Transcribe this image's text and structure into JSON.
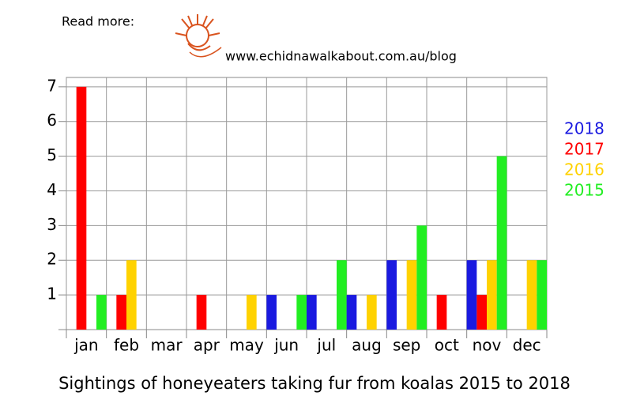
{
  "header": {
    "read_more": "Read more:",
    "url": "www.echidnawalkabout.com.au/blog"
  },
  "chart_data": {
    "type": "bar",
    "title": "Sightings of honeyeaters taking fur from koalas 2015 to 2018",
    "categories": [
      "jan",
      "feb",
      "mar",
      "apr",
      "may",
      "jun",
      "jul",
      "aug",
      "sep",
      "oct",
      "nov",
      "dec"
    ],
    "series": [
      {
        "name": "2018",
        "color": "#1a1ae0",
        "values": [
          0,
          0,
          0,
          0,
          0,
          1,
          1,
          1,
          2,
          0,
          2,
          0
        ]
      },
      {
        "name": "2017",
        "color": "#ff0000",
        "values": [
          7,
          1,
          0,
          1,
          0,
          0,
          0,
          0,
          0,
          1,
          1,
          0
        ]
      },
      {
        "name": "2016",
        "color": "#ffd200",
        "values": [
          0,
          2,
          0,
          0,
          1,
          0,
          0,
          1,
          2,
          0,
          2,
          2
        ]
      },
      {
        "name": "2015",
        "color": "#22ee22",
        "values": [
          1,
          0,
          0,
          0,
          0,
          1,
          2,
          0,
          3,
          0,
          5,
          2
        ]
      }
    ],
    "ylim": [
      0,
      7.27
    ],
    "yticks": [
      1,
      2,
      3,
      4,
      5,
      6,
      7
    ],
    "grid": true,
    "legend": "right"
  }
}
